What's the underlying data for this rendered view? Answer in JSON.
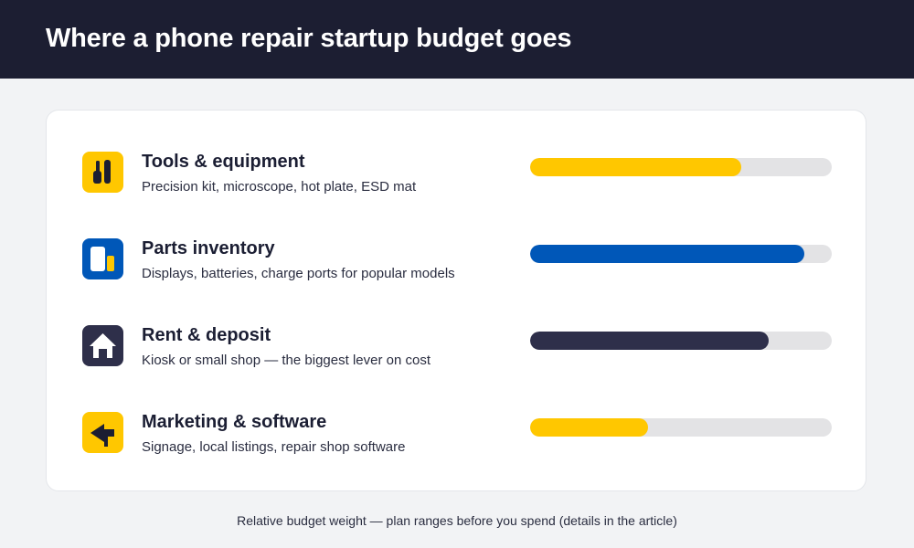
{
  "header": {
    "title": "Where a phone repair startup budget goes"
  },
  "chart_data": {
    "type": "bar",
    "orientation": "horizontal",
    "value_unit": "fraction of bar",
    "xlim": [
      0,
      1
    ],
    "categories": [
      "Tools & equipment",
      "Parts inventory",
      "Rent & deposit",
      "Marketing & software"
    ],
    "values": [
      0.7,
      0.91,
      0.79,
      0.39
    ],
    "items": [
      {
        "label": "Tools & equipment",
        "description": "Precision kit, microscope, hot plate, ESD mat",
        "value": 0.7,
        "color": "#ffc700",
        "icon": "tools-icon",
        "icon_bg": "#ffc700"
      },
      {
        "label": "Parts inventory",
        "description": "Displays, batteries, charge ports for popular models",
        "value": 0.91,
        "color": "#0057b8",
        "icon": "parts-icon",
        "icon_bg": "#0057b8"
      },
      {
        "label": "Rent & deposit",
        "description": "Kiosk or small shop — the biggest lever on cost",
        "value": 0.79,
        "color": "#2e2f4a",
        "icon": "house-icon",
        "icon_bg": "#2e2f4a"
      },
      {
        "label": "Marketing & software",
        "description": "Signage, local listings, repair shop software",
        "value": 0.39,
        "color": "#ffc700",
        "icon": "arrow-left-icon",
        "icon_bg": "#ffc700"
      }
    ],
    "track_color": "#e3e3e5",
    "grid": false,
    "legend": "none"
  },
  "footer": {
    "caption": "Relative budget weight — plan ranges before you spend (details in the article)"
  }
}
